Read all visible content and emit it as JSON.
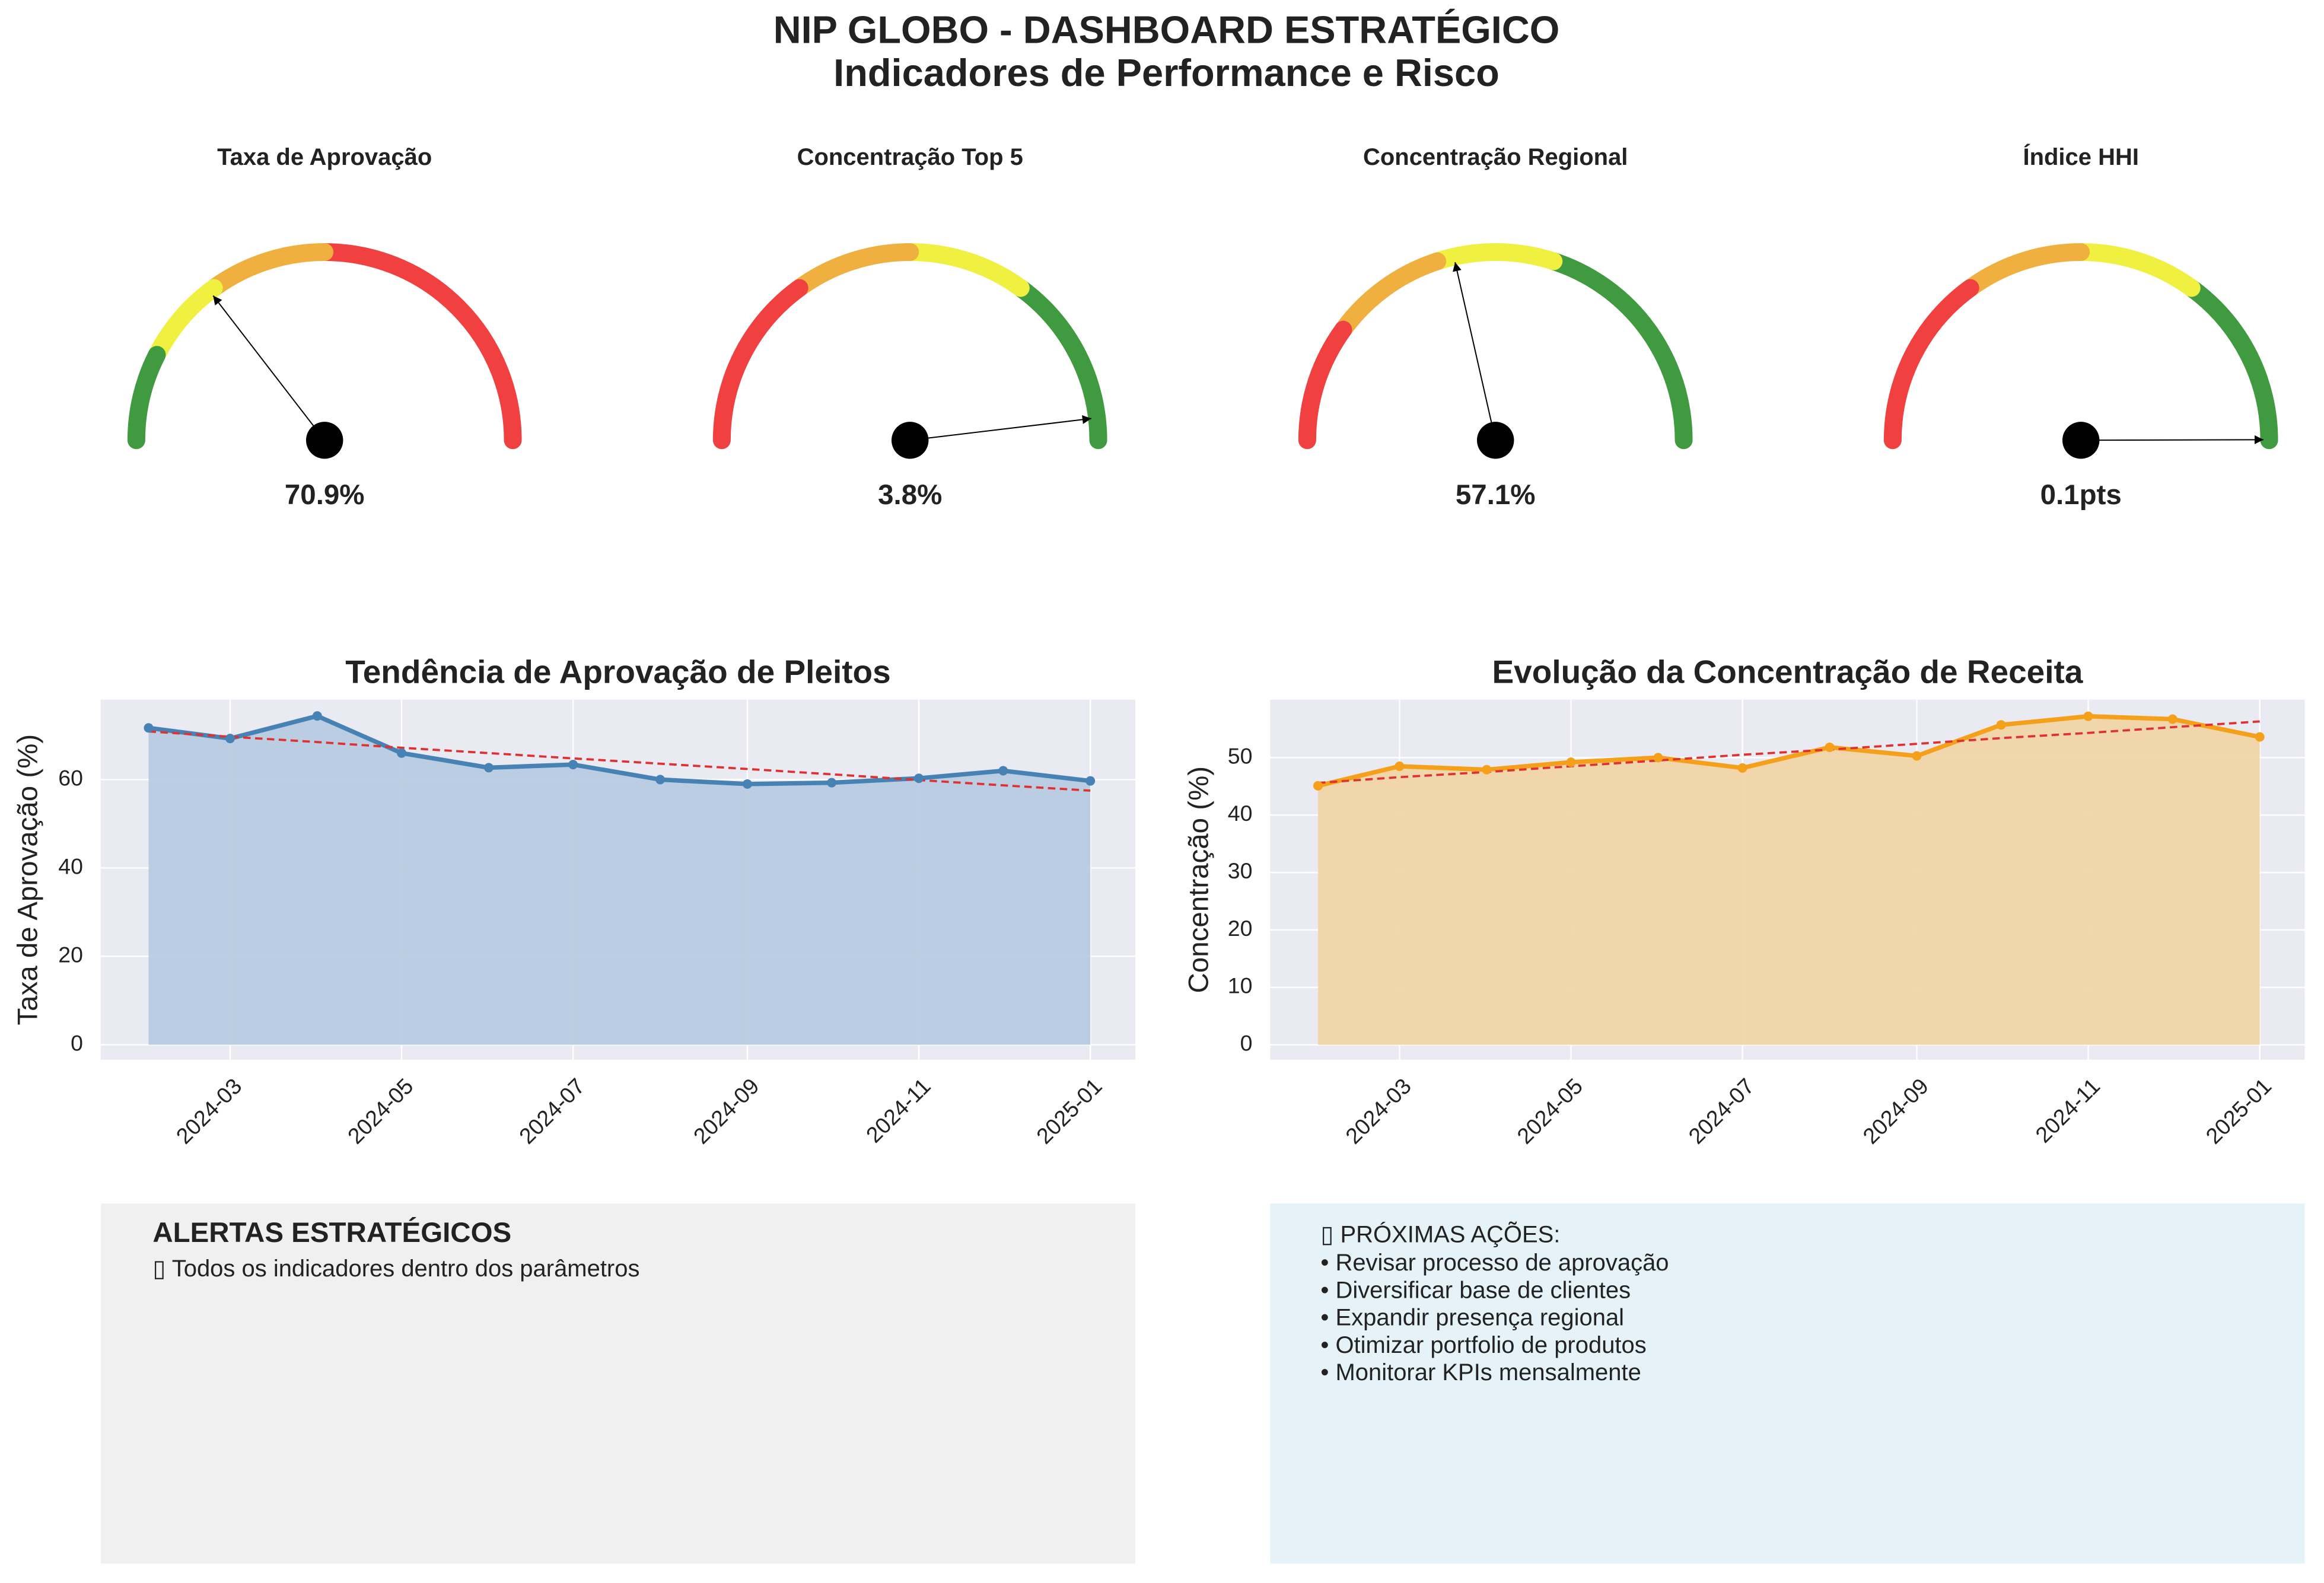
{
  "title": "NIP GLOBO - DASHBOARD ESTRATÉGICO",
  "subtitle": "Indicadores de Performance e Risco",
  "chart_data": [
    {
      "type": "gauge",
      "title": "Taxa de Aprovação",
      "value": 70.9,
      "value_labels": "70.9%",
      "range": [
        0,
        100
      ],
      "bands": [
        {
          "from": 0,
          "to": 50,
          "color": "#f04040"
        },
        {
          "from": 50,
          "to": 70,
          "color": "#f0b040"
        },
        {
          "from": 70,
          "to": 85,
          "color": "#f0f040"
        },
        {
          "from": 85,
          "to": 100,
          "color": "#409a40"
        }
      ]
    },
    {
      "type": "gauge",
      "title": "Concentração Top 5",
      "value": 3.8,
      "value_labels": "3.8%",
      "range": [
        0,
        100
      ],
      "bands": [
        {
          "from": 0,
          "to": 30,
          "color": "#409a40"
        },
        {
          "from": 30,
          "to": 50,
          "color": "#f0f040"
        },
        {
          "from": 50,
          "to": 70,
          "color": "#f0b040"
        },
        {
          "from": 70,
          "to": 100,
          "color": "#f04040"
        }
      ]
    },
    {
      "type": "gauge",
      "title": "Concentração Regional",
      "value": 57.1,
      "value_labels": "57.1%",
      "range": [
        0,
        100
      ],
      "bands": [
        {
          "from": 0,
          "to": 40,
          "color": "#409a40"
        },
        {
          "from": 40,
          "to": 60,
          "color": "#f0f040"
        },
        {
          "from": 60,
          "to": 80,
          "color": "#f0b040"
        },
        {
          "from": 80,
          "to": 100,
          "color": "#f04040"
        }
      ]
    },
    {
      "type": "gauge",
      "title": "Índice HHI",
      "value": 0.1,
      "value_labels": "0.1pts",
      "range": [
        0,
        100
      ],
      "bands": [
        {
          "from": 0,
          "to": 30,
          "color": "#409a40"
        },
        {
          "from": 30,
          "to": 50,
          "color": "#f0f040"
        },
        {
          "from": 50,
          "to": 70,
          "color": "#f0b040"
        },
        {
          "from": 70,
          "to": 100,
          "color": "#f04040"
        }
      ]
    },
    {
      "type": "line",
      "title": "Tendência de Aprovação de Pleitos",
      "y_label": "Taxa de Aprovação (%)",
      "x": [
        "2024-02",
        "2024-03",
        "2024-04",
        "2024-05",
        "2024-06",
        "2024-07",
        "2024-08",
        "2024-09",
        "2024-10",
        "2024-11",
        "2024-12",
        "2025-01"
      ],
      "values": [
        71.7,
        69.3,
        74.4,
        66.0,
        62.7,
        63.4,
        60.0,
        59.0,
        59.3,
        60.3,
        62.0,
        59.7
      ],
      "trend": [
        70.9,
        69.7,
        68.5,
        67.2,
        66.0,
        64.8,
        63.6,
        62.4,
        61.2,
        59.9,
        58.7,
        57.5
      ],
      "color": "#4682b4",
      "fill_color": "#b8cbe0",
      "trend_color": "#e03030",
      "xlim": [
        "2024-01-15",
        "2025-01-17"
      ],
      "xticks": [
        "2024-03",
        "2024-05",
        "2024-07",
        "2024-09",
        "2024-11",
        "2025-01"
      ],
      "ylim": [
        -3.4,
        78.1
      ],
      "yticks": [
        0,
        20,
        40,
        60
      ],
      "grid": true
    },
    {
      "type": "line",
      "title": "Evolução da Concentração de Receita",
      "y_label": "Concentração (%)",
      "x": [
        "2024-02",
        "2024-03",
        "2024-04",
        "2024-05",
        "2024-06",
        "2024-07",
        "2024-08",
        "2024-09",
        "2024-10",
        "2024-11",
        "2024-12",
        "2025-01"
      ],
      "values": [
        45.1,
        48.5,
        47.9,
        49.2,
        50.0,
        48.2,
        51.8,
        50.3,
        55.7,
        57.2,
        56.7,
        53.6
      ],
      "trend": [
        45.6,
        46.6,
        47.5,
        48.5,
        49.5,
        50.5,
        51.4,
        52.4,
        53.4,
        54.3,
        55.3,
        56.3
      ],
      "color": "#f5a01a",
      "fill_color": "#f0d5a5",
      "trend_color": "#e03030",
      "xlim": [
        "2024-01-15",
        "2025-01-17"
      ],
      "xticks": [
        "2024-03",
        "2024-05",
        "2024-07",
        "2024-09",
        "2024-11",
        "2025-01"
      ],
      "ylim": [
        -2.6,
        60.1
      ],
      "yticks": [
        0,
        10,
        20,
        30,
        40,
        50
      ],
      "grid": true
    }
  ],
  "alerts": {
    "title": "ALERTAS ESTRATÉGICOS",
    "items": [
      "▯ Todos os indicadores dentro dos parâmetros"
    ]
  },
  "actions": {
    "title": "▯ PRÓXIMAS AÇÕES:",
    "items": [
      "• Revisar processo de aprovação",
      "• Diversificar base de clientes",
      "• Expandir presença regional",
      "• Otimizar portfolio de produtos",
      "• Monitorar KPIs mensalmente"
    ]
  }
}
